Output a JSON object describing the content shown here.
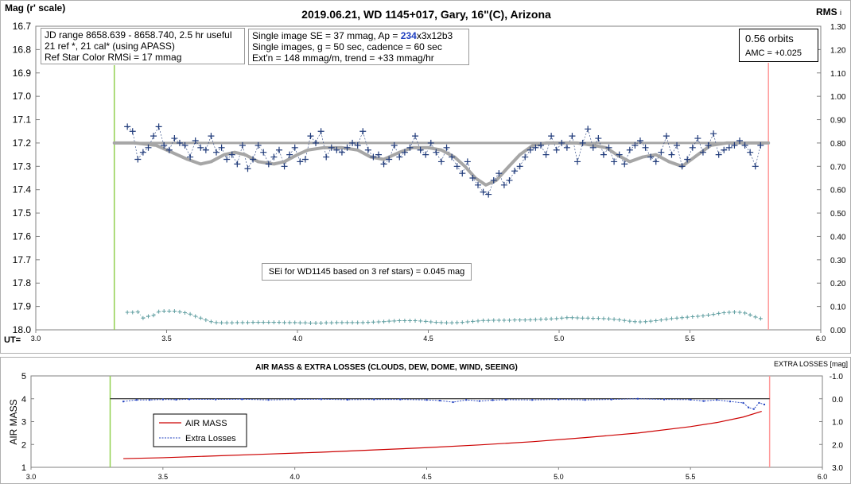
{
  "colors": {
    "points": "#1f3a7a",
    "model": "#a6a6a6",
    "reference_line": "#a6a6a6",
    "rms_points": "#5f9ea0",
    "start_line": "#92d050",
    "end_line": "#ff9999",
    "airmass_line": "#cc0000",
    "extra_losses": "#1f3fbf",
    "highlight": "#1f3fbf"
  },
  "top_chart": {
    "title": "2019.06.21, WD 1145+017, Gary, 16\"(C), Arizona",
    "ylabel_left": "Mag (r' scale)",
    "ylabel_right": "RMS",
    "ylabel_right_suffix": "i",
    "xlabel": "UT=",
    "y_ticks": [
      "16.7",
      "16.8",
      "16.9",
      "17.0",
      "17.1",
      "17.2",
      "17.3",
      "17.4",
      "17.5",
      "17.6",
      "17.7",
      "17.8",
      "17.9",
      "18.0"
    ],
    "y2_ticks": [
      "1.30",
      "1.20",
      "1.10",
      "1.00",
      "0.90",
      "0.80",
      "0.70",
      "0.60",
      "0.50",
      "0.40",
      "0.30",
      "0.20",
      "0.10",
      "0.00"
    ],
    "x_ticks": [
      "3.0",
      "3.5",
      "4.0",
      "4.5",
      "5.0",
      "5.5",
      "6.0"
    ],
    "info_box_left": {
      "line1": "JD range 8658.639 - 8658.740, 2.5 hr useful",
      "line2": "21 ref *, 21 cal* (using APASS)",
      "line3": "Ref Star Color RMSi = 17 mmag"
    },
    "info_box_mid": {
      "line1_pre": "Single image SE = 37 mmag, Ap = ",
      "line1_ap": "234",
      "line1_post": "x3x12b3",
      "line2": "Single images, g = 50 sec, cadence = 60 sec",
      "line3": "Ext'n = 148 mmag/m, trend = +33 mmag/hr"
    },
    "info_box_right": {
      "line1": "0.56 orbits",
      "line2": "AMC = +0.025"
    },
    "sei_note": "SEi for WD1145 based on 3 ref stars) = 0.045 mag"
  },
  "bottom_chart": {
    "title": "AIR MASS & EXTRA LOSSES (CLOUDS, DEW, DOME, WIND, SEEING)",
    "ylabel_left": "AIR MASS",
    "ylabel_right": "EXTRA LOSSES [mag]",
    "y_ticks": [
      "5",
      "4",
      "3",
      "2",
      "1"
    ],
    "y2_ticks": [
      "-1.0",
      "0.0",
      "1.0",
      "2.0",
      "3.0"
    ],
    "x_ticks": [
      "3.0",
      "3.5",
      "4.0",
      "4.5",
      "5.0",
      "5.5",
      "6.0"
    ],
    "legend": {
      "airmass": "AIR MASS",
      "extra": "Extra Losses"
    }
  },
  "chart_data": [
    {
      "type": "scatter",
      "title": "2019.06.21, WD 1145+017, Gary, 16\"(C), Arizona",
      "xlabel": "UT=",
      "ylabel": "Mag (r' scale)",
      "y2label": "RMS i",
      "xlim": [
        3.0,
        6.0
      ],
      "ylim": [
        16.7,
        18.0
      ],
      "y_inverted": true,
      "y2lim": [
        0.0,
        1.3
      ],
      "grid": false,
      "vertical_markers": {
        "start": 3.3,
        "end": 5.8
      },
      "reference_level": 17.2,
      "model_curve": {
        "x": [
          3.3,
          3.38,
          3.46,
          3.52,
          3.58,
          3.63,
          3.67,
          3.72,
          3.76,
          3.8,
          3.85,
          3.91,
          3.95,
          4.0,
          4.04,
          4.1,
          4.17,
          4.23,
          4.28,
          4.33,
          4.39,
          4.44,
          4.5,
          4.55,
          4.6,
          4.64,
          4.68,
          4.72,
          4.76,
          4.8,
          4.85,
          4.9,
          4.95,
          5.0,
          5.07,
          5.13,
          5.18,
          5.22,
          5.27,
          5.32,
          5.37,
          5.42,
          5.47,
          5.53,
          5.58,
          5.64,
          5.7,
          5.8
        ],
        "y": [
          17.2,
          17.2,
          17.21,
          17.24,
          17.27,
          17.29,
          17.28,
          17.25,
          17.24,
          17.25,
          17.28,
          17.29,
          17.28,
          17.25,
          17.23,
          17.22,
          17.22,
          17.23,
          17.26,
          17.27,
          17.24,
          17.22,
          17.22,
          17.23,
          17.26,
          17.3,
          17.35,
          17.38,
          17.36,
          17.31,
          17.25,
          17.21,
          17.2,
          17.2,
          17.2,
          17.21,
          17.22,
          17.25,
          17.28,
          17.26,
          17.25,
          17.28,
          17.3,
          17.25,
          17.21,
          17.2,
          17.2,
          17.2
        ]
      },
      "series": [
        {
          "x": [
            3.35,
            3.37,
            3.39,
            3.41,
            3.43,
            3.45,
            3.47,
            3.49,
            3.51,
            3.53,
            3.55,
            3.57,
            3.59,
            3.61,
            3.63,
            3.65,
            3.67,
            3.69,
            3.71,
            3.73,
            3.75,
            3.77,
            3.79,
            3.81,
            3.83,
            3.85,
            3.87,
            3.89,
            3.91,
            3.93,
            3.95,
            3.97,
            3.99,
            4.01,
            4.03,
            4.05,
            4.07,
            4.09,
            4.11,
            4.13,
            4.15,
            4.17,
            4.19,
            4.21,
            4.23,
            4.25,
            4.27,
            4.29,
            4.31,
            4.33,
            4.35,
            4.37,
            4.39,
            4.41,
            4.43,
            4.45,
            4.47,
            4.49,
            4.51,
            4.53,
            4.55,
            4.57,
            4.59,
            4.61,
            4.63,
            4.65,
            4.67,
            4.69,
            4.71,
            4.73,
            4.75,
            4.77,
            4.79,
            4.81,
            4.83,
            4.85,
            4.87,
            4.89,
            4.91,
            4.93,
            4.95,
            4.97,
            4.99,
            5.01,
            5.03,
            5.05,
            5.07,
            5.09,
            5.11,
            5.13,
            5.15,
            5.17,
            5.19,
            5.21,
            5.23,
            5.25,
            5.27,
            5.29,
            5.31,
            5.33,
            5.35,
            5.37,
            5.39,
            5.41,
            5.43,
            5.45,
            5.47,
            5.49,
            5.51,
            5.53,
            5.55,
            5.57,
            5.59,
            5.61,
            5.63,
            5.65,
            5.67,
            5.69,
            5.71,
            5.73,
            5.75,
            5.77
          ],
          "y": [
            17.13,
            17.15,
            17.27,
            17.24,
            17.22,
            17.17,
            17.13,
            17.21,
            17.23,
            17.18,
            17.2,
            17.21,
            17.26,
            17.19,
            17.22,
            17.23,
            17.17,
            17.24,
            17.22,
            17.27,
            17.25,
            17.29,
            17.21,
            17.31,
            17.27,
            17.21,
            17.24,
            17.29,
            17.26,
            17.23,
            17.3,
            17.25,
            17.22,
            17.28,
            17.27,
            17.17,
            17.2,
            17.15,
            17.26,
            17.22,
            17.23,
            17.24,
            17.22,
            17.2,
            17.21,
            17.15,
            17.23,
            17.26,
            17.25,
            17.29,
            17.27,
            17.21,
            17.26,
            17.24,
            17.22,
            17.17,
            17.23,
            17.25,
            17.2,
            17.24,
            17.28,
            17.22,
            17.26,
            17.3,
            17.33,
            17.28,
            17.35,
            17.38,
            17.41,
            17.42,
            17.36,
            17.33,
            17.38,
            17.36,
            17.32,
            17.3,
            17.26,
            17.23,
            17.22,
            17.21,
            17.25,
            17.17,
            17.23,
            17.2,
            17.22,
            17.17,
            17.28,
            17.2,
            17.14,
            17.22,
            17.18,
            17.25,
            17.22,
            17.28,
            17.25,
            17.29,
            17.23,
            17.21,
            17.19,
            17.22,
            17.26,
            17.28,
            17.24,
            17.17,
            17.25,
            17.21,
            17.3,
            17.27,
            17.22,
            17.18,
            17.24,
            17.21,
            17.16,
            17.25,
            17.23,
            17.22,
            17.21,
            17.19,
            17.21,
            17.24,
            17.3,
            17.21
          ]
        },
        {
          "name": "RMS i",
          "axis": "y2",
          "x": [
            3.35,
            3.37,
            3.39,
            3.41,
            3.43,
            3.45,
            3.47,
            3.49,
            3.51,
            3.53,
            3.55,
            3.57,
            3.59,
            3.61,
            3.63,
            3.65,
            3.67,
            3.69,
            3.71,
            3.73,
            3.75,
            3.77,
            3.79,
            3.81,
            3.83,
            3.85,
            3.87,
            3.89,
            3.91,
            3.93,
            3.95,
            3.97,
            3.99,
            4.01,
            4.03,
            4.05,
            4.07,
            4.09,
            4.11,
            4.13,
            4.15,
            4.17,
            4.19,
            4.21,
            4.23,
            4.25,
            4.27,
            4.29,
            4.31,
            4.33,
            4.35,
            4.37,
            4.39,
            4.41,
            4.43,
            4.45,
            4.47,
            4.49,
            4.51,
            4.53,
            4.55,
            4.57,
            4.59,
            4.61,
            4.63,
            4.65,
            4.67,
            4.69,
            4.71,
            4.73,
            4.75,
            4.77,
            4.79,
            4.81,
            4.83,
            4.85,
            4.87,
            4.89,
            4.91,
            4.93,
            4.95,
            4.97,
            4.99,
            5.01,
            5.03,
            5.05,
            5.07,
            5.09,
            5.11,
            5.13,
            5.15,
            5.17,
            5.19,
            5.21,
            5.23,
            5.25,
            5.27,
            5.29,
            5.31,
            5.33,
            5.35,
            5.37,
            5.39,
            5.41,
            5.43,
            5.45,
            5.47,
            5.49,
            5.51,
            5.53,
            5.55,
            5.57,
            5.59,
            5.61,
            5.63,
            5.65,
            5.67,
            5.69,
            5.71,
            5.73,
            5.75,
            5.77
          ],
          "y": [
            0.075,
            0.075,
            0.077,
            0.05,
            0.058,
            0.062,
            0.078,
            0.08,
            0.08,
            0.08,
            0.077,
            0.073,
            0.067,
            0.058,
            0.05,
            0.042,
            0.035,
            0.031,
            0.03,
            0.03,
            0.03,
            0.031,
            0.031,
            0.031,
            0.032,
            0.032,
            0.032,
            0.032,
            0.032,
            0.032,
            0.031,
            0.031,
            0.031,
            0.03,
            0.03,
            0.029,
            0.029,
            0.029,
            0.03,
            0.03,
            0.031,
            0.031,
            0.031,
            0.031,
            0.031,
            0.031,
            0.032,
            0.033,
            0.034,
            0.035,
            0.037,
            0.038,
            0.039,
            0.039,
            0.039,
            0.039,
            0.038,
            0.036,
            0.034,
            0.032,
            0.031,
            0.03,
            0.03,
            0.031,
            0.032,
            0.034,
            0.036,
            0.038,
            0.04,
            0.04,
            0.041,
            0.041,
            0.041,
            0.041,
            0.042,
            0.042,
            0.042,
            0.043,
            0.044,
            0.045,
            0.046,
            0.047,
            0.048,
            0.05,
            0.052,
            0.052,
            0.051,
            0.05,
            0.05,
            0.049,
            0.049,
            0.048,
            0.047,
            0.045,
            0.043,
            0.04,
            0.037,
            0.035,
            0.034,
            0.035,
            0.037,
            0.039,
            0.042,
            0.045,
            0.048,
            0.05,
            0.052,
            0.054,
            0.056,
            0.058,
            0.06,
            0.063,
            0.066,
            0.07,
            0.073,
            0.075,
            0.076,
            0.075,
            0.072,
            0.064,
            0.055,
            0.048
          ]
        }
      ]
    },
    {
      "type": "line",
      "title": "AIR MASS & EXTRA LOSSES (CLOUDS, DEW, DOME, WIND, SEEING)",
      "ylabel": "AIR MASS",
      "y2label": "EXTRA LOSSES [mag]",
      "xlim": [
        3.0,
        6.0
      ],
      "ylim": [
        1,
        5
      ],
      "y2lim": [
        -1.0,
        3.0
      ],
      "y2_inverted": true,
      "legend_position": "left",
      "vertical_markers": {
        "start": 3.3,
        "end": 5.8
      },
      "reference_level_y2": 0.0,
      "series": [
        {
          "name": "AIR MASS",
          "axis": "y",
          "x": [
            3.35,
            3.5,
            3.7,
            3.9,
            4.1,
            4.3,
            4.5,
            4.7,
            4.9,
            5.1,
            5.3,
            5.5,
            5.6,
            5.7,
            5.77
          ],
          "y": [
            1.38,
            1.42,
            1.5,
            1.58,
            1.66,
            1.76,
            1.86,
            1.98,
            2.12,
            2.3,
            2.5,
            2.78,
            2.96,
            3.2,
            3.45
          ]
        },
        {
          "name": "Extra Losses",
          "axis": "y2",
          "x": [
            3.35,
            3.4,
            3.45,
            3.5,
            3.55,
            3.6,
            3.7,
            3.8,
            3.9,
            4.0,
            4.1,
            4.2,
            4.3,
            4.4,
            4.5,
            4.55,
            4.6,
            4.65,
            4.7,
            4.75,
            4.8,
            4.9,
            5.0,
            5.1,
            5.2,
            5.3,
            5.4,
            5.5,
            5.55,
            5.6,
            5.65,
            5.7,
            5.72,
            5.74,
            5.76,
            5.78
          ],
          "y": [
            0.12,
            0.05,
            0.05,
            0.03,
            0.04,
            0.02,
            0.03,
            0.02,
            0.05,
            0.03,
            0.02,
            0.04,
            0.03,
            0.03,
            0.05,
            0.08,
            0.15,
            0.05,
            0.1,
            0.06,
            0.04,
            0.05,
            0.03,
            0.05,
            0.03,
            0.0,
            0.03,
            0.04,
            0.1,
            0.05,
            0.12,
            0.18,
            0.38,
            0.45,
            0.18,
            0.25
          ]
        }
      ]
    }
  ]
}
